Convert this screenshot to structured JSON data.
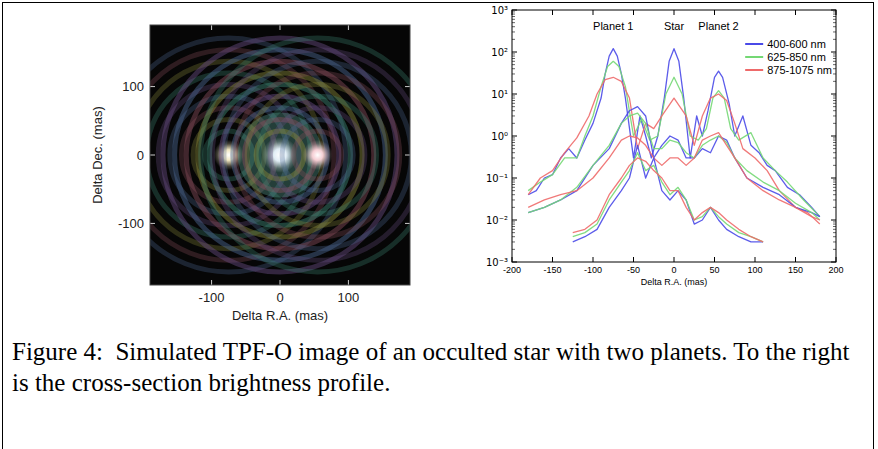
{
  "chart_data": [
    {
      "type": "image",
      "x_label": "Delta R.A. (mas)",
      "y_label": "Delta Dec. (mas)",
      "xlim": [
        -190,
        190
      ],
      "ylim": [
        -190,
        190
      ],
      "xticks": [
        -100,
        0,
        100
      ],
      "yticks": [
        -100,
        0,
        100
      ],
      "x": [
        -75,
        0,
        55
      ],
      "values": [
        0,
        0,
        0
      ],
      "colors": [
        "#fff4cc",
        "#eaf6ff",
        "#ffd6dc"
      ]
    },
    {
      "type": "line",
      "log": "y",
      "x_label": "Delta R.A. (mas)",
      "legend": "upper right",
      "xlim": [
        -200,
        200
      ],
      "xticks": [
        -200,
        -150,
        -100,
        -50,
        0,
        50,
        100,
        150,
        200
      ],
      "ylim": [
        0.001,
        1000
      ],
      "yticks": [
        {
          "value": 0.001,
          "label": "10⁻³"
        },
        {
          "value": 0.01,
          "label": "10⁻²"
        },
        {
          "value": 0.1,
          "label": "10⁻¹"
        },
        {
          "value": 1,
          "label": "10⁰"
        },
        {
          "value": 10,
          "label": "10¹"
        },
        {
          "value": 100,
          "label": "10²"
        },
        {
          "value": 1000,
          "label": "10³"
        }
      ],
      "annotations": [
        {
          "text": "Planet 1",
          "x": -75
        },
        {
          "text": "Star",
          "x": 0
        },
        {
          "text": "Planet 2",
          "x": 55
        }
      ],
      "series": [
        {
          "name": "400-600 nm",
          "color": "#4a4ae8",
          "x": [
            -180,
            -170,
            -160,
            -150,
            -140,
            -130,
            -120,
            -110,
            -100,
            -90,
            -85,
            -80,
            -75,
            -70,
            -65,
            -60,
            -50,
            -42,
            -35,
            -28,
            -20,
            -12,
            -6,
            0,
            6,
            12,
            20,
            28,
            35,
            42,
            50,
            55,
            60,
            68,
            75,
            85,
            95,
            105,
            115,
            125,
            140,
            155,
            170,
            180
          ],
          "values": [
            0.04,
            0.05,
            0.1,
            0.12,
            0.3,
            0.5,
            0.3,
            0.8,
            2,
            8,
            30,
            80,
            120,
            80,
            30,
            8,
            0.3,
            3,
            1,
            0.3,
            1,
            8,
            60,
            120,
            60,
            8,
            0.3,
            3,
            1,
            4,
            25,
            35,
            25,
            6,
            1,
            3,
            0.6,
            0.4,
            0.2,
            0.15,
            0.06,
            0.04,
            0.02,
            0.012
          ]
        },
        {
          "name": "625-850 nm",
          "color": "#74d874",
          "x": [
            -180,
            -165,
            -150,
            -135,
            -120,
            -110,
            -100,
            -90,
            -82,
            -75,
            -68,
            -60,
            -50,
            -40,
            -30,
            -20,
            -10,
            0,
            10,
            20,
            30,
            40,
            48,
            55,
            62,
            70,
            80,
            95,
            110,
            125,
            140,
            160,
            180
          ],
          "values": [
            0.05,
            0.08,
            0.12,
            0.3,
            0.3,
            1,
            3,
            15,
            45,
            60,
            45,
            15,
            1,
            2.5,
            0.8,
            1,
            10,
            25,
            10,
            1,
            0.8,
            1.5,
            8,
            12,
            8,
            1.5,
            0.8,
            1.2,
            0.3,
            0.15,
            0.08,
            0.03,
            0.012
          ]
        },
        {
          "name": "875-1075 nm",
          "color": "#ee6a6a",
          "x": [
            -180,
            -165,
            -150,
            -135,
            -120,
            -105,
            -95,
            -85,
            -75,
            -65,
            -55,
            -45,
            -35,
            -25,
            -15,
            0,
            15,
            25,
            35,
            45,
            55,
            65,
            75,
            85,
            100,
            115,
            130,
            150,
            165,
            180
          ],
          "values": [
            0.04,
            0.1,
            0.15,
            0.4,
            0.9,
            3,
            10,
            22,
            25,
            20,
            8,
            0.5,
            2,
            1.5,
            3,
            8,
            3,
            0.6,
            3,
            8,
            10,
            7,
            2,
            0.5,
            0.3,
            0.15,
            0.05,
            0.02,
            0.015,
            0.008
          ]
        },
        {
          "color": "#4a4ae8",
          "x": [
            -180,
            -160,
            -140,
            -120,
            -100,
            -80,
            -65,
            -55,
            -45,
            -35,
            -25,
            -15,
            -5,
            5,
            15,
            25,
            35,
            45,
            55,
            65,
            75,
            90,
            110,
            130,
            150,
            170,
            180
          ],
          "values": [
            0.015,
            0.02,
            0.03,
            0.05,
            0.2,
            0.5,
            2,
            4,
            5,
            3,
            0.3,
            0.6,
            1,
            0.8,
            0.3,
            0.3,
            0.5,
            0.4,
            1,
            0.8,
            0.3,
            0.1,
            0.06,
            0.04,
            0.02,
            0.015,
            0.012
          ]
        },
        {
          "color": "#74d874",
          "x": [
            -180,
            -160,
            -140,
            -120,
            -100,
            -80,
            -65,
            -55,
            -45,
            -35,
            -25,
            -15,
            -5,
            5,
            15,
            25,
            35,
            45,
            55,
            65,
            75,
            90,
            110,
            130,
            150,
            170,
            180
          ],
          "values": [
            0.015,
            0.02,
            0.03,
            0.06,
            0.2,
            0.6,
            2,
            3,
            3.5,
            2,
            0.5,
            0.5,
            0.8,
            0.7,
            0.4,
            0.3,
            0.6,
            0.8,
            1,
            0.7,
            0.3,
            0.15,
            0.08,
            0.05,
            0.025,
            0.015,
            0.01
          ]
        },
        {
          "color": "#ee6a6a",
          "x": [
            -180,
            -160,
            -140,
            -120,
            -100,
            -80,
            -65,
            -55,
            -45,
            -35,
            -25,
            -15,
            -5,
            5,
            15,
            25,
            35,
            45,
            55,
            65,
            75,
            90,
            110,
            130,
            150,
            170,
            180
          ],
          "values": [
            0.02,
            0.03,
            0.04,
            0.05,
            0.1,
            0.3,
            0.8,
            1,
            0.9,
            0.6,
            0.3,
            0.2,
            0.3,
            0.3,
            0.2,
            0.3,
            0.8,
            1,
            1.2,
            0.6,
            0.3,
            0.1,
            0.05,
            0.03,
            0.02,
            0.012,
            0.01
          ]
        },
        {
          "color": "#4a4ae8",
          "x": [
            -125,
            -110,
            -95,
            -80,
            -65,
            -55,
            -45,
            -35,
            -25,
            -15,
            -5,
            5,
            15,
            25,
            35,
            45,
            55,
            65,
            80,
            95,
            110
          ],
          "values": [
            0.003,
            0.004,
            0.006,
            0.02,
            0.05,
            0.1,
            0.6,
            0.1,
            0.3,
            0.05,
            0.03,
            0.05,
            0.03,
            0.008,
            0.01,
            0.02,
            0.01,
            0.006,
            0.004,
            0.003,
            0.003
          ]
        },
        {
          "color": "#74d874",
          "x": [
            -125,
            -110,
            -95,
            -80,
            -65,
            -55,
            -45,
            -35,
            -25,
            -15,
            -5,
            5,
            15,
            25,
            35,
            45,
            55,
            65,
            80,
            95,
            110
          ],
          "values": [
            0.004,
            0.005,
            0.008,
            0.03,
            0.08,
            0.15,
            0.4,
            0.15,
            0.2,
            0.08,
            0.04,
            0.06,
            0.03,
            0.01,
            0.012,
            0.02,
            0.012,
            0.008,
            0.005,
            0.004,
            0.003
          ]
        },
        {
          "color": "#ee6a6a",
          "x": [
            -125,
            -110,
            -95,
            -80,
            -65,
            -55,
            -45,
            -35,
            -25,
            -15,
            -5,
            5,
            15,
            25,
            35,
            45,
            55,
            65,
            80,
            95,
            110
          ],
          "values": [
            0.005,
            0.006,
            0.01,
            0.04,
            0.1,
            0.2,
            0.3,
            0.25,
            0.15,
            0.1,
            0.05,
            0.05,
            0.02,
            0.01,
            0.015,
            0.02,
            0.015,
            0.01,
            0.006,
            0.004,
            0.003
          ]
        }
      ]
    }
  ],
  "caption": "Figure 4:  Simulated TPF-O image of an occulted star with two planets. To the right is the cross-section brightness profile."
}
